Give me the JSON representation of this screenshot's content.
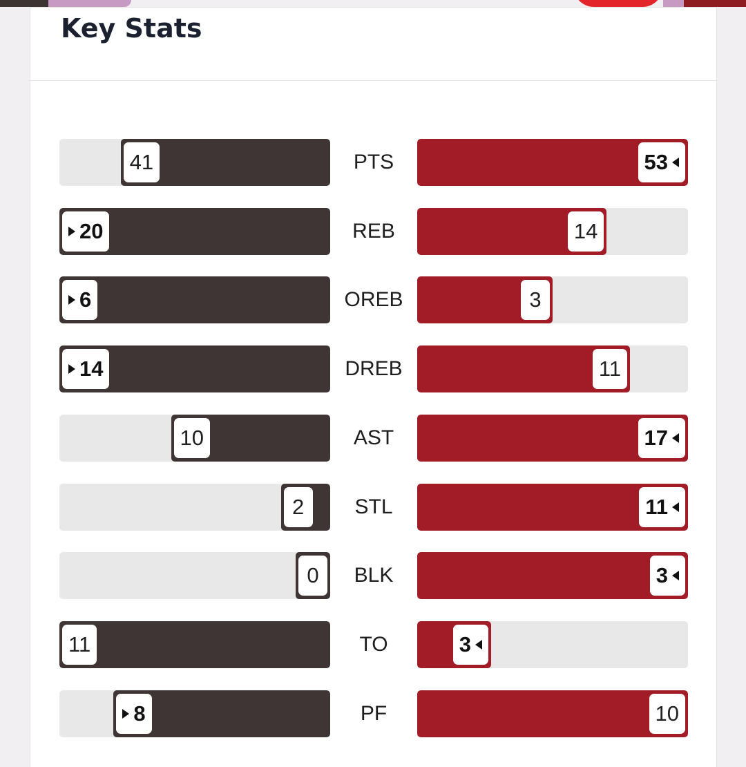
{
  "card": {
    "title": "Key Stats"
  },
  "colors": {
    "left_team_fill": "#3e3534",
    "right_team_fill": "#a11c26",
    "track": "#e8e8e8"
  },
  "stats": [
    {
      "label": "PTS",
      "left": "41",
      "right": "53",
      "left_share": 0.774,
      "right_share": 1.0,
      "leader": "right"
    },
    {
      "label": "REB",
      "left": "20",
      "right": "14",
      "left_share": 1.0,
      "right_share": 0.7,
      "leader": "left"
    },
    {
      "label": "OREB",
      "left": "6",
      "right": "3",
      "left_share": 1.0,
      "right_share": 0.5,
      "leader": "left"
    },
    {
      "label": "DREB",
      "left": "14",
      "right": "11",
      "left_share": 1.0,
      "right_share": 0.786,
      "leader": "left"
    },
    {
      "label": "AST",
      "left": "10",
      "right": "17",
      "left_share": 0.588,
      "right_share": 1.0,
      "leader": "right"
    },
    {
      "label": "STL",
      "left": "2",
      "right": "11",
      "left_share": 0.182,
      "right_share": 1.0,
      "leader": "right"
    },
    {
      "label": "BLK",
      "left": "0",
      "right": "3",
      "left_share": 0.0,
      "right_share": 1.0,
      "leader": "right"
    },
    {
      "label": "TO",
      "left": "11",
      "right": "3",
      "left_share": 1.0,
      "right_share": 0.273,
      "leader": "right"
    },
    {
      "label": "PF",
      "left": "8",
      "right": "10",
      "left_share": 0.8,
      "right_share": 1.0,
      "leader": "left"
    }
  ]
}
